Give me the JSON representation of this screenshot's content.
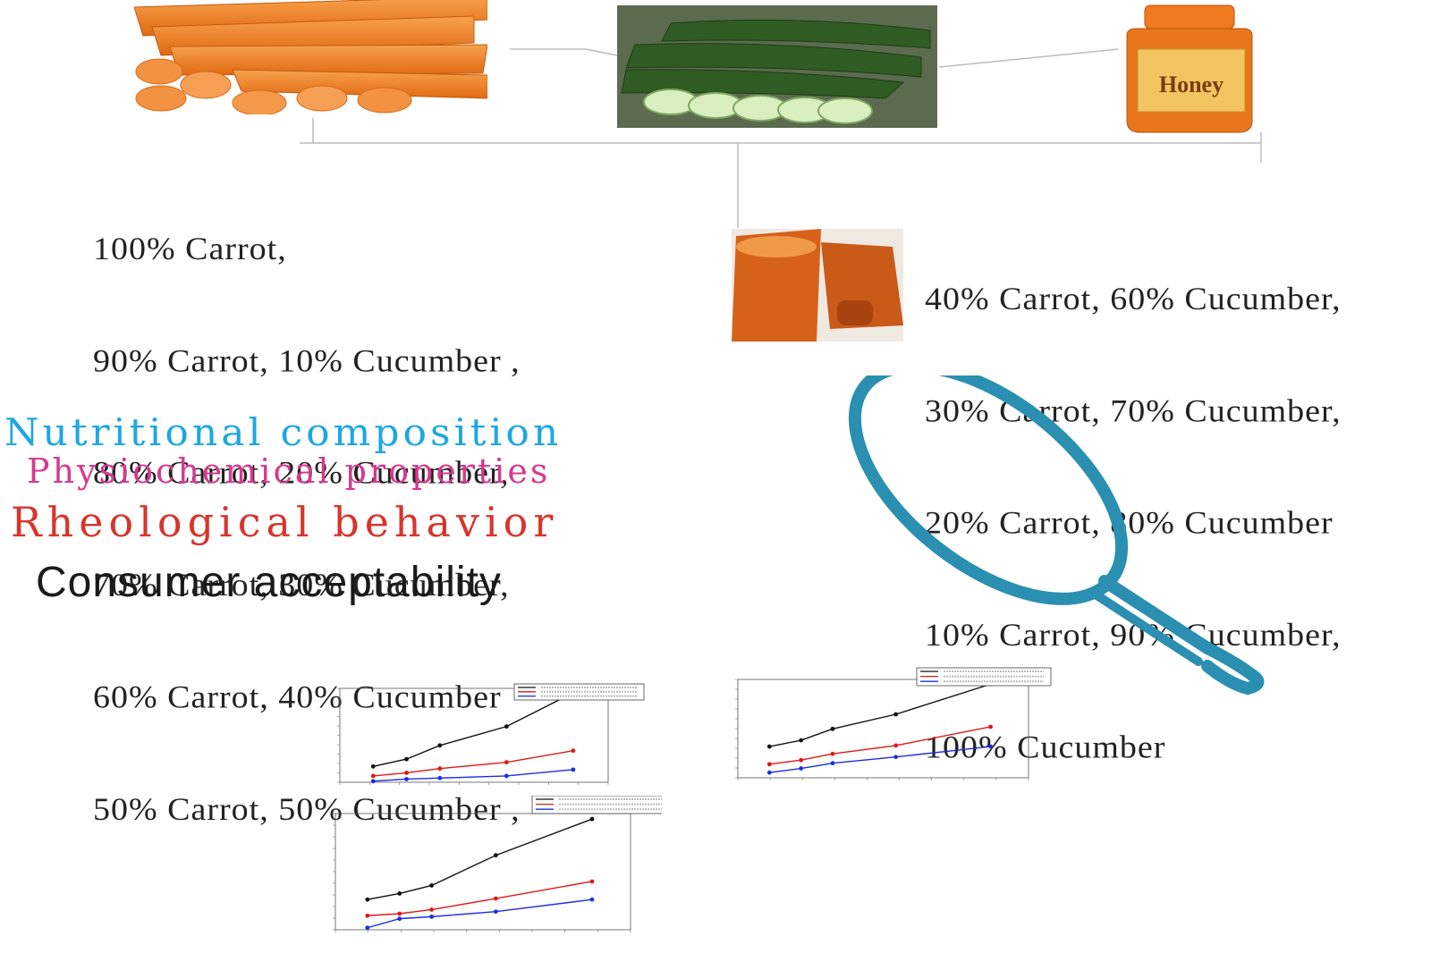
{
  "images": {
    "carrot": "carrot-photo",
    "cucumber": "cucumber-photo",
    "honey": "honey-jar-photo",
    "juice": "juice-glass-photo",
    "honey_label": "Honey",
    "magnifier": "magnifying-glass-icon"
  },
  "blends_left": [
    "100% Carrot,",
    "90% Carrot, 10% Cucumber ,",
    "80% Carrot, 20% Cucumber,",
    "70% Carrot, 30% Cucumber,",
    "60% Carrot, 40% Cucumber",
    "50% Carrot, 50% Cucumber ,"
  ],
  "blends_right": [
    "40% Carrot, 60% Cucumber,",
    "30% Carrot, 70% Cucumber,",
    "20% Carrot, 80% Cucumber",
    "10% Carrot, 90% Cucumber,",
    "100% Cucumber"
  ],
  "properties": {
    "nutritional": "Nutritional composition",
    "physiochemical": "Physiochemical properties",
    "rheological": "Rheological behavior",
    "consumer": "Consumer acceptability"
  },
  "colors": {
    "nutritional": "#1ea7e1",
    "physiochemical": "#d63a8e",
    "rheological": "#d8342c",
    "consumer": "#1a1a1a",
    "magnifier": "#2a8fb0",
    "series_black": "#111111",
    "series_red": "#e01818",
    "series_blue": "#1a2ee0"
  },
  "chart_data": [
    {
      "type": "line",
      "title": "",
      "xlabel": "",
      "ylabel": "",
      "x": [
        0.01,
        0.02,
        0.03,
        0.05,
        0.07
      ],
      "series": [
        {
          "values": [
            1.5,
            2.2,
            3.5,
            5.3,
            8.5
          ]
        },
        {
          "values": [
            0.6,
            0.9,
            1.3,
            1.9,
            3.0
          ]
        },
        {
          "values": [
            0.1,
            0.3,
            0.4,
            0.6,
            1.2
          ]
        }
      ]
    },
    {
      "type": "line",
      "title": "",
      "xlabel": "",
      "ylabel": "",
      "x": [
        0.01,
        0.02,
        0.03,
        0.05,
        0.08
      ],
      "series": [
        {
          "values": [
            3.0,
            3.6,
            4.7,
            6.1,
            9.0
          ]
        },
        {
          "values": [
            1.3,
            1.7,
            2.3,
            3.1,
            4.9
          ]
        },
        {
          "values": [
            0.5,
            0.9,
            1.4,
            2.0,
            3.0
          ]
        }
      ]
    },
    {
      "type": "line",
      "title": "",
      "xlabel": "",
      "ylabel": "",
      "x": [
        0.01,
        0.02,
        0.03,
        0.05,
        0.08
      ],
      "series": [
        {
          "values": [
            3.0,
            3.6,
            4.4,
            7.4,
            11.0
          ]
        },
        {
          "values": [
            1.4,
            1.6,
            2.0,
            3.1,
            4.8
          ]
        },
        {
          "values": [
            0.2,
            1.1,
            1.3,
            1.8,
            3.0
          ]
        }
      ]
    }
  ]
}
